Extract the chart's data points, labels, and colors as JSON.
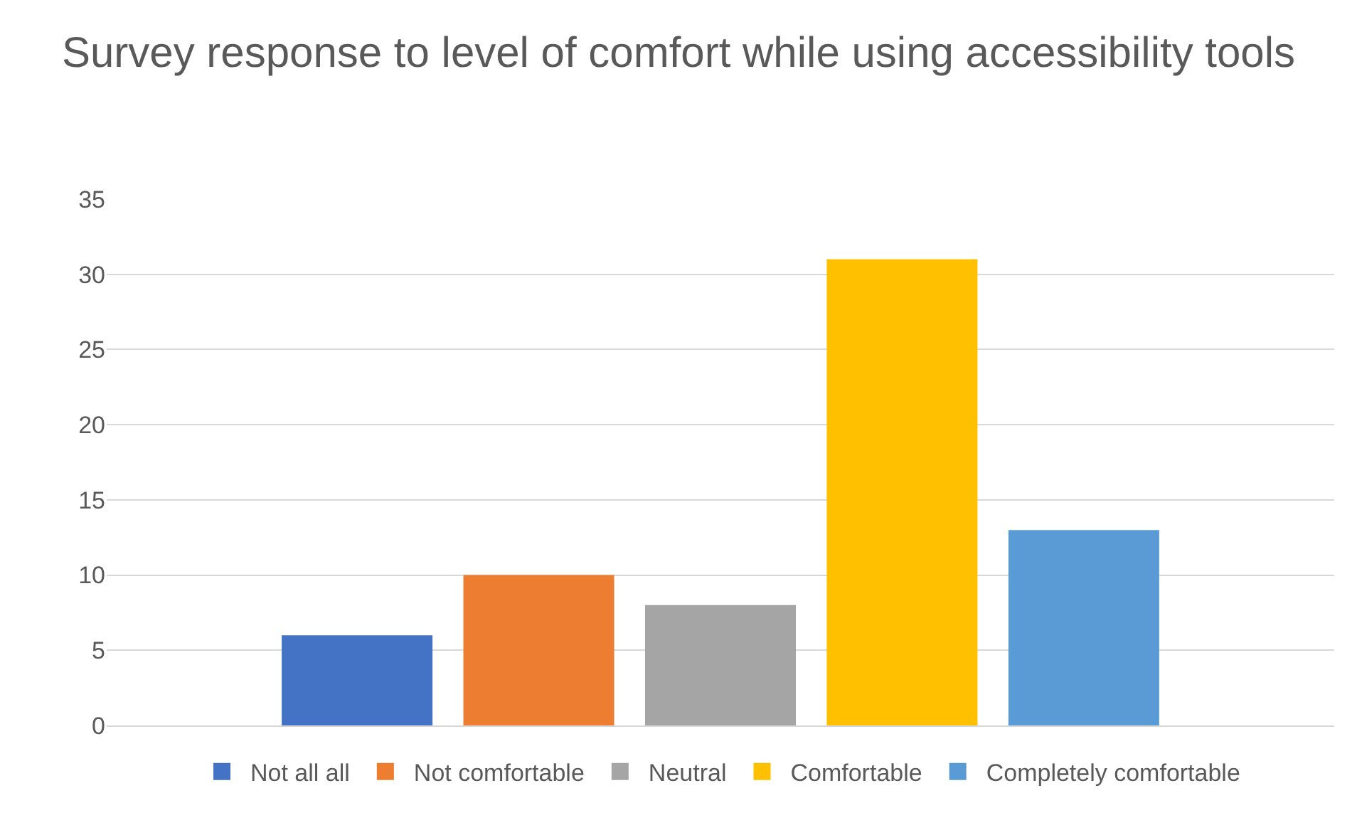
{
  "chart_data": {
    "type": "bar",
    "title": "Survey response to level of comfort while using accessibility tools",
    "categories": [
      null
    ],
    "series": [
      {
        "name": "Not all all",
        "color": "#4472c4",
        "values": [
          6
        ]
      },
      {
        "name": "Not comfortable",
        "color": "#ed7d31",
        "values": [
          10
        ]
      },
      {
        "name": "Neutral",
        "color": "#a5a5a5",
        "values": [
          8
        ]
      },
      {
        "name": "Comfortable",
        "color": "#ffc000",
        "values": [
          31
        ]
      },
      {
        "name": "Completely comfortable",
        "color": "#5b9bd5",
        "values": [
          13
        ]
      }
    ],
    "ylim": [
      0,
      35
    ],
    "yticks": [
      0,
      5,
      10,
      15,
      20,
      25,
      30,
      35
    ],
    "grid": "y",
    "legend": "bottom"
  }
}
